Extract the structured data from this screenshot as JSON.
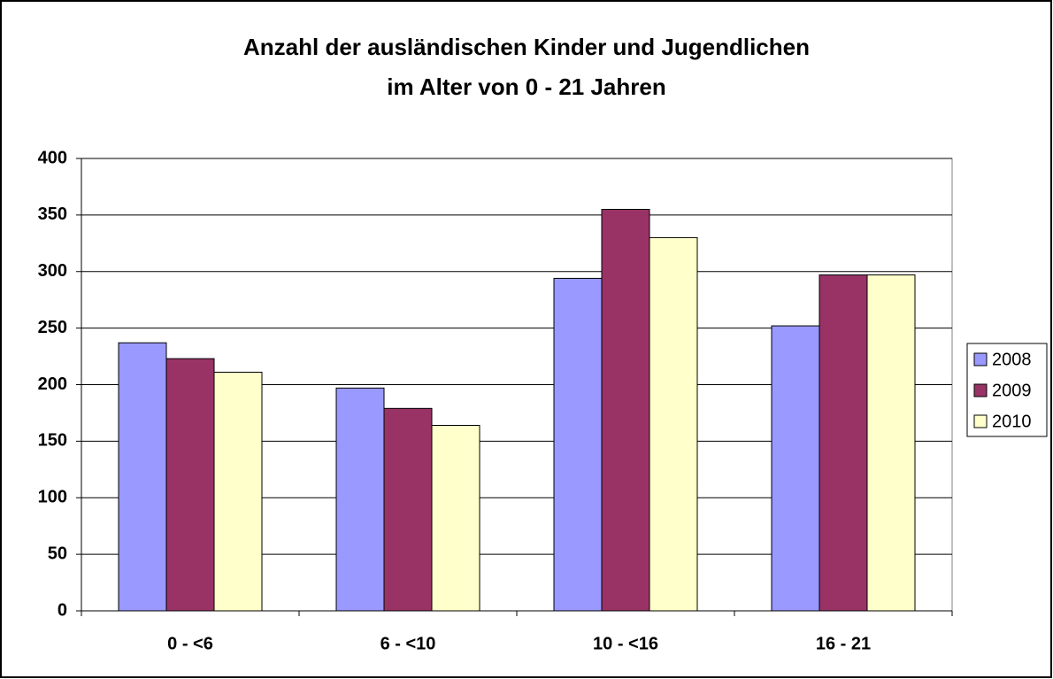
{
  "chart_data": {
    "type": "bar",
    "title": [
      "Anzahl der ausländischen Kinder und Jugendlichen",
      "im Alter von 0 - 21 Jahren"
    ],
    "categories": [
      "0 - <6",
      "6 - <10",
      "10 - <16",
      "16 - 21"
    ],
    "series": [
      {
        "name": "2008",
        "color": "#9999ff",
        "values": [
          237,
          197,
          294,
          252
        ]
      },
      {
        "name": "2009",
        "color": "#993366",
        "values": [
          223,
          179,
          355,
          297
        ]
      },
      {
        "name": "2010",
        "color": "#ffffcc",
        "values": [
          211,
          164,
          330,
          297
        ]
      }
    ],
    "ylim": [
      0,
      400
    ],
    "yticks": [
      0,
      50,
      100,
      150,
      200,
      250,
      300,
      350,
      400
    ],
    "grid": true,
    "legend": "right"
  }
}
